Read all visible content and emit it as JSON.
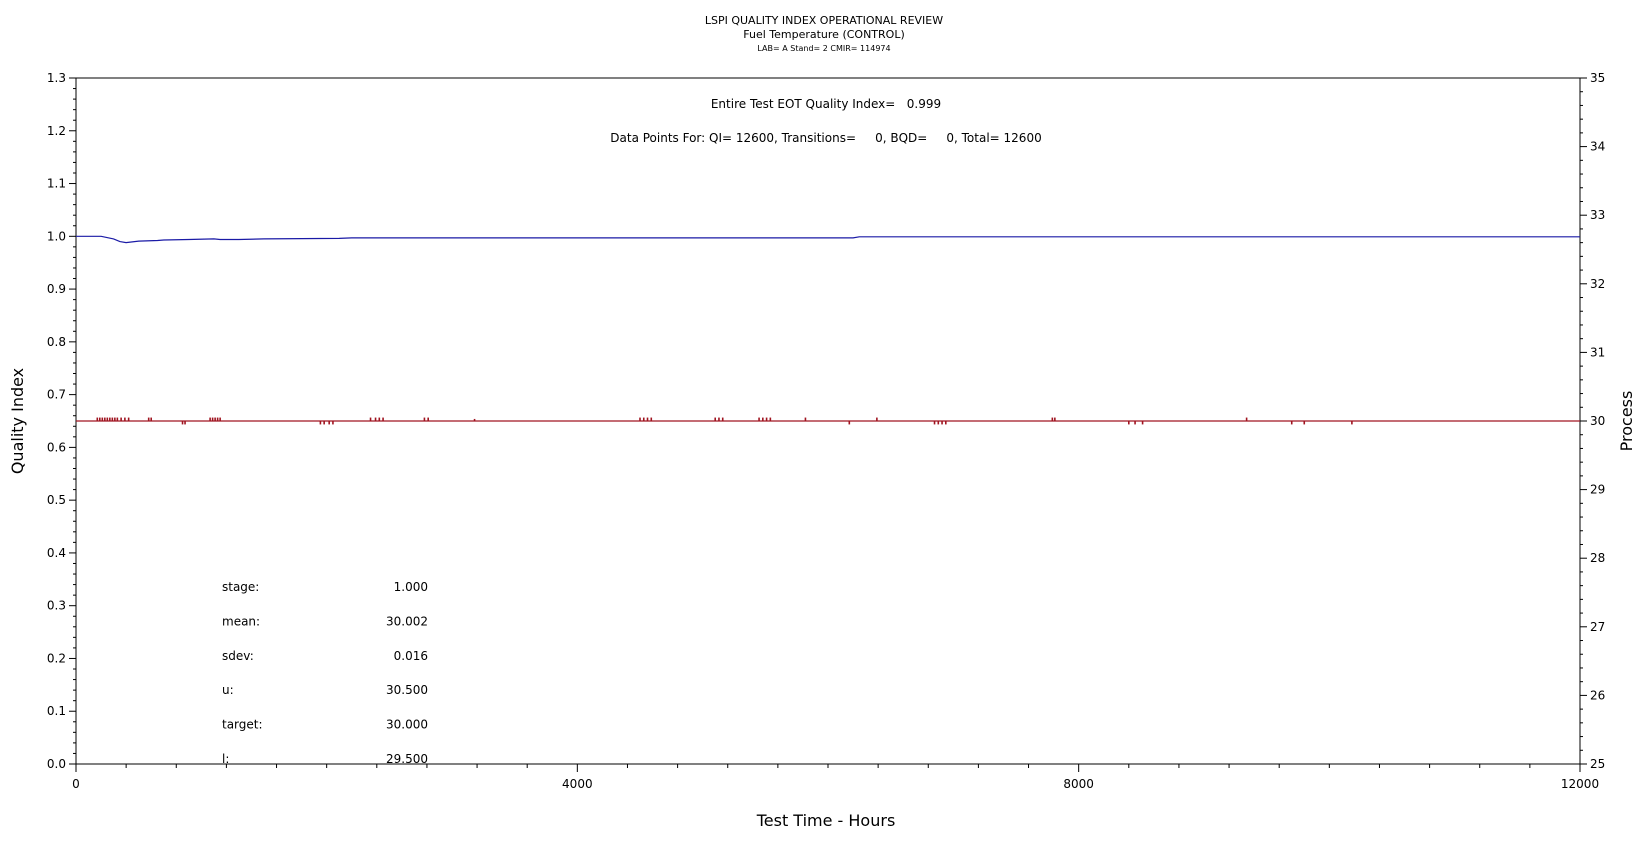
{
  "chart_data": {
    "type": "line",
    "title": "LSPI QUALITY INDEX OPERATIONAL REVIEW",
    "subtitle": "Fuel Temperature (CONTROL)",
    "subtitle2": "LAB= A Stand= 2 CMIR= 114974",
    "xlabel": "Test Time - Hours",
    "ylabel": "Quality Index",
    "y2label": "Process",
    "xlim": [
      0,
      12000
    ],
    "ylim": [
      0.0,
      1.3
    ],
    "y2lim": [
      25,
      35
    ],
    "x_ticks": [
      0,
      4000,
      8000,
      12000
    ],
    "y_ticks": [
      "0.0",
      "0.1",
      "0.2",
      "0.3",
      "0.4",
      "0.5",
      "0.6",
      "0.7",
      "0.8",
      "0.9",
      "1.0",
      "1.1",
      "1.2",
      "1.3"
    ],
    "y2_ticks": [
      "25",
      "26",
      "27",
      "28",
      "29",
      "30",
      "31",
      "32",
      "33",
      "34",
      "35"
    ],
    "annotations": {
      "qi_text": "Entire Test EOT Quality Index=   0.999",
      "points_text": "Data Points For: QI= 12600, Transitions=     0, BQD=     0, Total= 12600"
    },
    "stats": [
      {
        "label": "stage:",
        "value": "1.000"
      },
      {
        "label": "mean:",
        "value": "30.002"
      },
      {
        "label": "sdev:",
        "value": "0.016"
      },
      {
        "label": "u:",
        "value": "30.500"
      },
      {
        "label": "target:",
        "value": "30.000"
      },
      {
        "label": "l:",
        "value": "29.500"
      }
    ],
    "series": [
      {
        "axis": "left",
        "color": "#1a1aa6",
        "x": [
          0,
          200,
          300,
          350,
          400,
          500,
          650,
          700,
          900,
          1100,
          1150,
          1300,
          1500,
          2100,
          2200,
          3000,
          5000,
          6200,
          6250,
          8000,
          12000
        ],
        "y": [
          1.0,
          1.0,
          0.995,
          0.99,
          0.988,
          0.991,
          0.992,
          0.993,
          0.994,
          0.995,
          0.994,
          0.994,
          0.995,
          0.996,
          0.997,
          0.997,
          0.997,
          0.997,
          0.999,
          0.999,
          0.999
        ]
      },
      {
        "axis": "right",
        "color": "#a01420",
        "baseline": 30.0,
        "x": [
          170,
          190,
          210,
          230,
          250,
          270,
          290,
          310,
          330,
          360,
          390,
          420,
          580,
          600,
          850,
          870,
          1070,
          1090,
          1110,
          1130,
          1150,
          1950,
          1980,
          2020,
          2050,
          2350,
          2390,
          2420,
          2450,
          2780,
          2810,
          3180,
          4500,
          4530,
          4560,
          4590,
          5100,
          5130,
          5160,
          5450,
          5480,
          5510,
          5540,
          5820,
          6170,
          6390,
          6850,
          6880,
          6910,
          6940,
          7790,
          7810,
          8400,
          8450,
          8510,
          9340,
          9700,
          9800,
          10180
        ],
        "y": [
          30.05,
          30.05,
          30.05,
          30.05,
          30.05,
          30.05,
          30.05,
          30.05,
          30.05,
          30.05,
          30.05,
          30.05,
          30.05,
          30.05,
          29.95,
          29.95,
          30.05,
          30.05,
          30.05,
          30.05,
          30.05,
          29.95,
          29.95,
          29.95,
          29.95,
          30.05,
          30.05,
          30.05,
          30.05,
          30.05,
          30.05,
          30.03,
          30.05,
          30.05,
          30.05,
          30.05,
          30.05,
          30.05,
          30.05,
          30.05,
          30.05,
          30.05,
          30.05,
          30.05,
          29.95,
          30.05,
          29.95,
          29.95,
          29.95,
          29.95,
          30.05,
          30.05,
          29.95,
          29.95,
          29.95,
          30.05,
          29.95,
          29.95,
          29.95
        ]
      }
    ]
  }
}
